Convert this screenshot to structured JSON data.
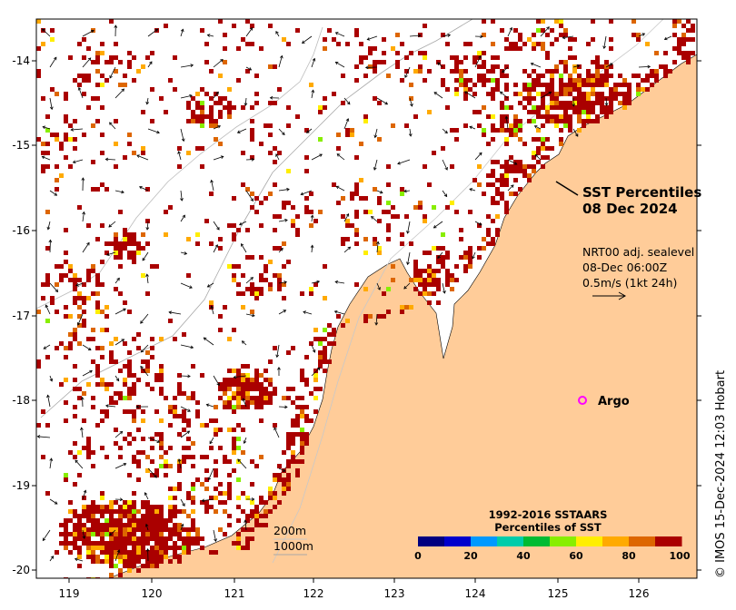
{
  "map": {
    "title_line1": "SST Percentiles",
    "title_line2": "08 Dec 2024",
    "vector_label_line1": "NRT00 adj. sealevel",
    "vector_label_line2": "08-Dec 06:00Z",
    "vector_label_line3": "0.5m/s (1kt 24h)",
    "argo_label": "Argo",
    "argo_marker_color": "#ff00ff",
    "depth_label_200": "200m",
    "depth_label_1000": "1000m",
    "credit": "© IMOS 15-Dec-2024 12:03 Hobart",
    "land_color": "#ffcc99",
    "x_ticks": [
      "119",
      "120",
      "121",
      "122",
      "123",
      "124",
      "125",
      "126"
    ],
    "y_ticks": [
      "-14",
      "-15",
      "-16",
      "-17",
      "-18",
      "-19",
      "-20"
    ],
    "colorbar": {
      "title_line1": "1992-2016 SSTAARS",
      "title_line2": "Percentiles of SST",
      "ticks": [
        "0",
        "20",
        "40",
        "60",
        "80",
        "100"
      ],
      "colors": [
        "#000080",
        "#0000cd",
        "#0099ff",
        "#00ccaa",
        "#00bb33",
        "#88ee00",
        "#ffee00",
        "#ffaa00",
        "#dd6600",
        "#aa0000"
      ]
    }
  }
}
